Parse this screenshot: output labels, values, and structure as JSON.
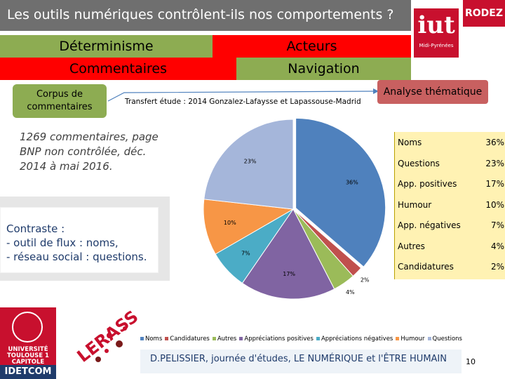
{
  "slide": {
    "title": "Les outils numériques contrôlent-ils nos comportements ?",
    "logo": {
      "brand": "iut",
      "subtitle": "Midi-Pyrénées",
      "corner": "RODEZ"
    }
  },
  "tabs": {
    "row1_left": "Déterminisme",
    "row1_right": "Acteurs",
    "row2_left": "Commentaires",
    "row2_right": "Navigation"
  },
  "flow": {
    "corpus": "Corpus de commentaires",
    "transfert": "Transfert étude : 2014 Gonzalez-Lafaysse et Lapassouse-Madrid",
    "analyse": "Analyse thématique"
  },
  "notes": {
    "commentaires": "1269 commentaires, page BNP non contrôlée, déc. 2014 à mai 2016.",
    "contraste_title": "Contraste :",
    "contraste_line1": "- outil de flux : noms,",
    "contraste_line2": "- réseau social : questions."
  },
  "colors": {
    "green": "#8dac52",
    "red": "#ff0000",
    "grey": "#6f6f6f",
    "navy": "#1f3b6b"
  },
  "chart_data": {
    "type": "pie",
    "categories": [
      "Noms",
      "Candidatures",
      "Autres",
      "Appréciations positives",
      "Appréciations négatives",
      "Humour",
      "Questions"
    ],
    "values": [
      36,
      2,
      4,
      17,
      7,
      10,
      23
    ],
    "colors": [
      "#4f81bd",
      "#c0504d",
      "#9bbb59",
      "#8064a2",
      "#4bacc6",
      "#f79646",
      "#a5b6da"
    ],
    "slice_labels": [
      "36%",
      "2%",
      "4%",
      "17%",
      "7%",
      "10%",
      "23%"
    ],
    "legend_position": "bottom"
  },
  "table": {
    "rows": [
      {
        "label": "Noms",
        "value": "36%"
      },
      {
        "label": "Questions",
        "value": "23%"
      },
      {
        "label": "App. positives",
        "value": "17%"
      },
      {
        "label": "Humour",
        "value": "10%"
      },
      {
        "label": "App. négatives",
        "value": "7%"
      },
      {
        "label": "Autres",
        "value": "4%"
      },
      {
        "label": "Candidatures",
        "value": "2%"
      }
    ]
  },
  "footer": {
    "credit": "D.PELISSIER, journée d'études, LE NUMÉRIQUE et l'ÊTRE HUMAIN",
    "page": "10",
    "university": "UNIVERSITÉ TOULOUSE 1 CAPITOLE",
    "lab": "IDETCOM",
    "lerass": "LERASS"
  }
}
